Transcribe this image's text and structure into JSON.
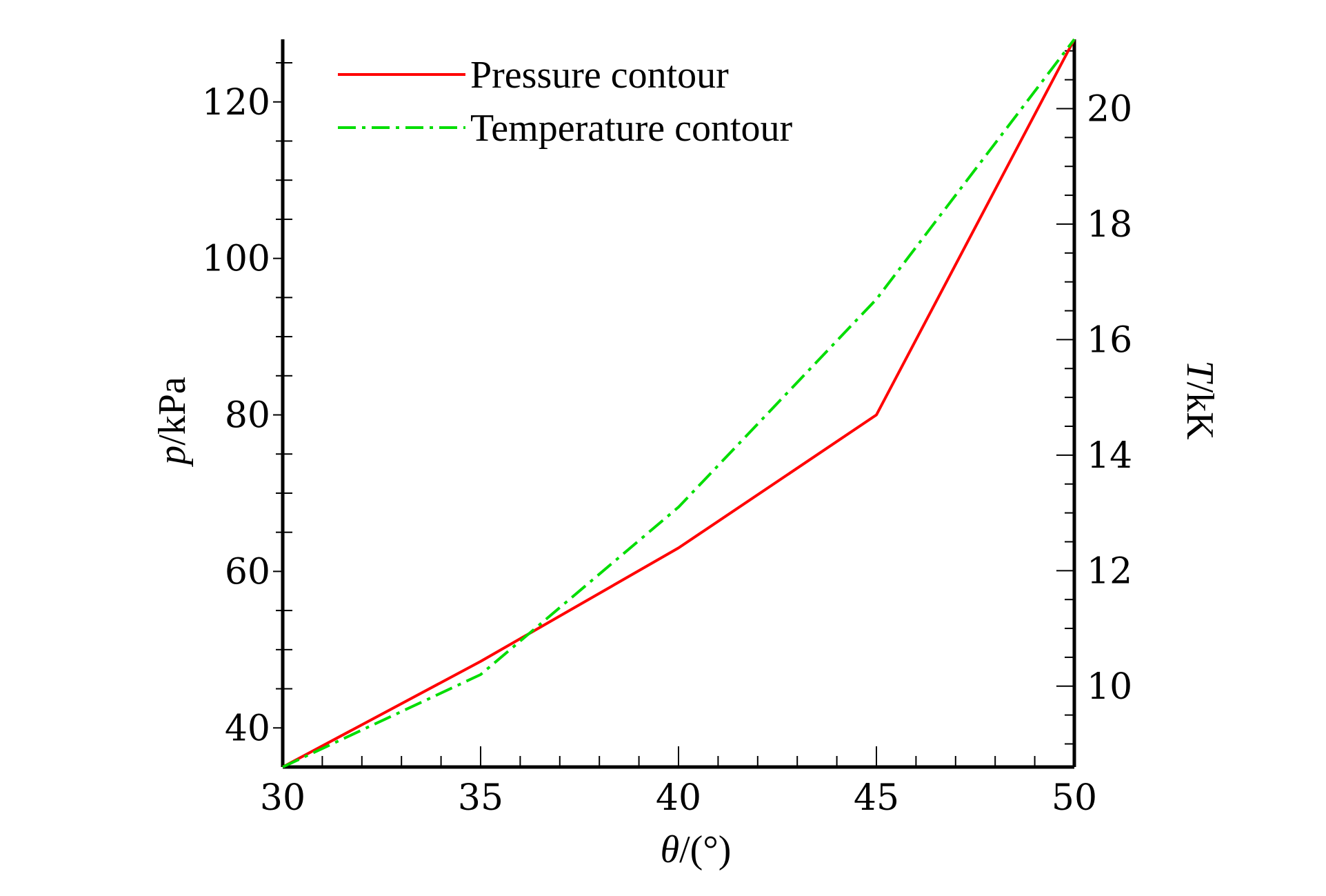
{
  "chart_data": {
    "type": "line",
    "title": "",
    "xlabel": "θ/(°)",
    "xlabel_parts": {
      "var": "θ",
      "rest": "/(°)"
    },
    "ylabel_left": "p/kPa",
    "ylabel_left_parts": {
      "var": "p",
      "rest": "/kPa"
    },
    "ylabel_right": "T/kK",
    "ylabel_right_parts": {
      "var": "T",
      "rest": "/kK"
    },
    "xlim": [
      30,
      50
    ],
    "ylim_left": [
      35,
      128
    ],
    "ylim_right": [
      8.6,
      21.2
    ],
    "x_ticks": [
      30,
      35,
      40,
      45,
      50
    ],
    "y_left_ticks": [
      40,
      60,
      80,
      100,
      120
    ],
    "y_right_ticks": [
      10,
      12,
      14,
      16,
      18,
      20
    ],
    "x": [
      30,
      35,
      40,
      45,
      50
    ],
    "series": [
      {
        "name": "Pressure contour",
        "axis": "left",
        "color": "#ff0000",
        "style": "solid",
        "values": [
          35,
          48.5,
          63,
          80,
          128
        ]
      },
      {
        "name": "Temperature contour",
        "axis": "right",
        "color": "#00dd00",
        "style": "dashdot",
        "values": [
          8.6,
          10.2,
          13.1,
          16.7,
          21.2
        ]
      }
    ],
    "legend": {
      "placement": "top-left",
      "entries": [
        "Pressure contour",
        "Temperature contour"
      ]
    },
    "grid": false
  }
}
